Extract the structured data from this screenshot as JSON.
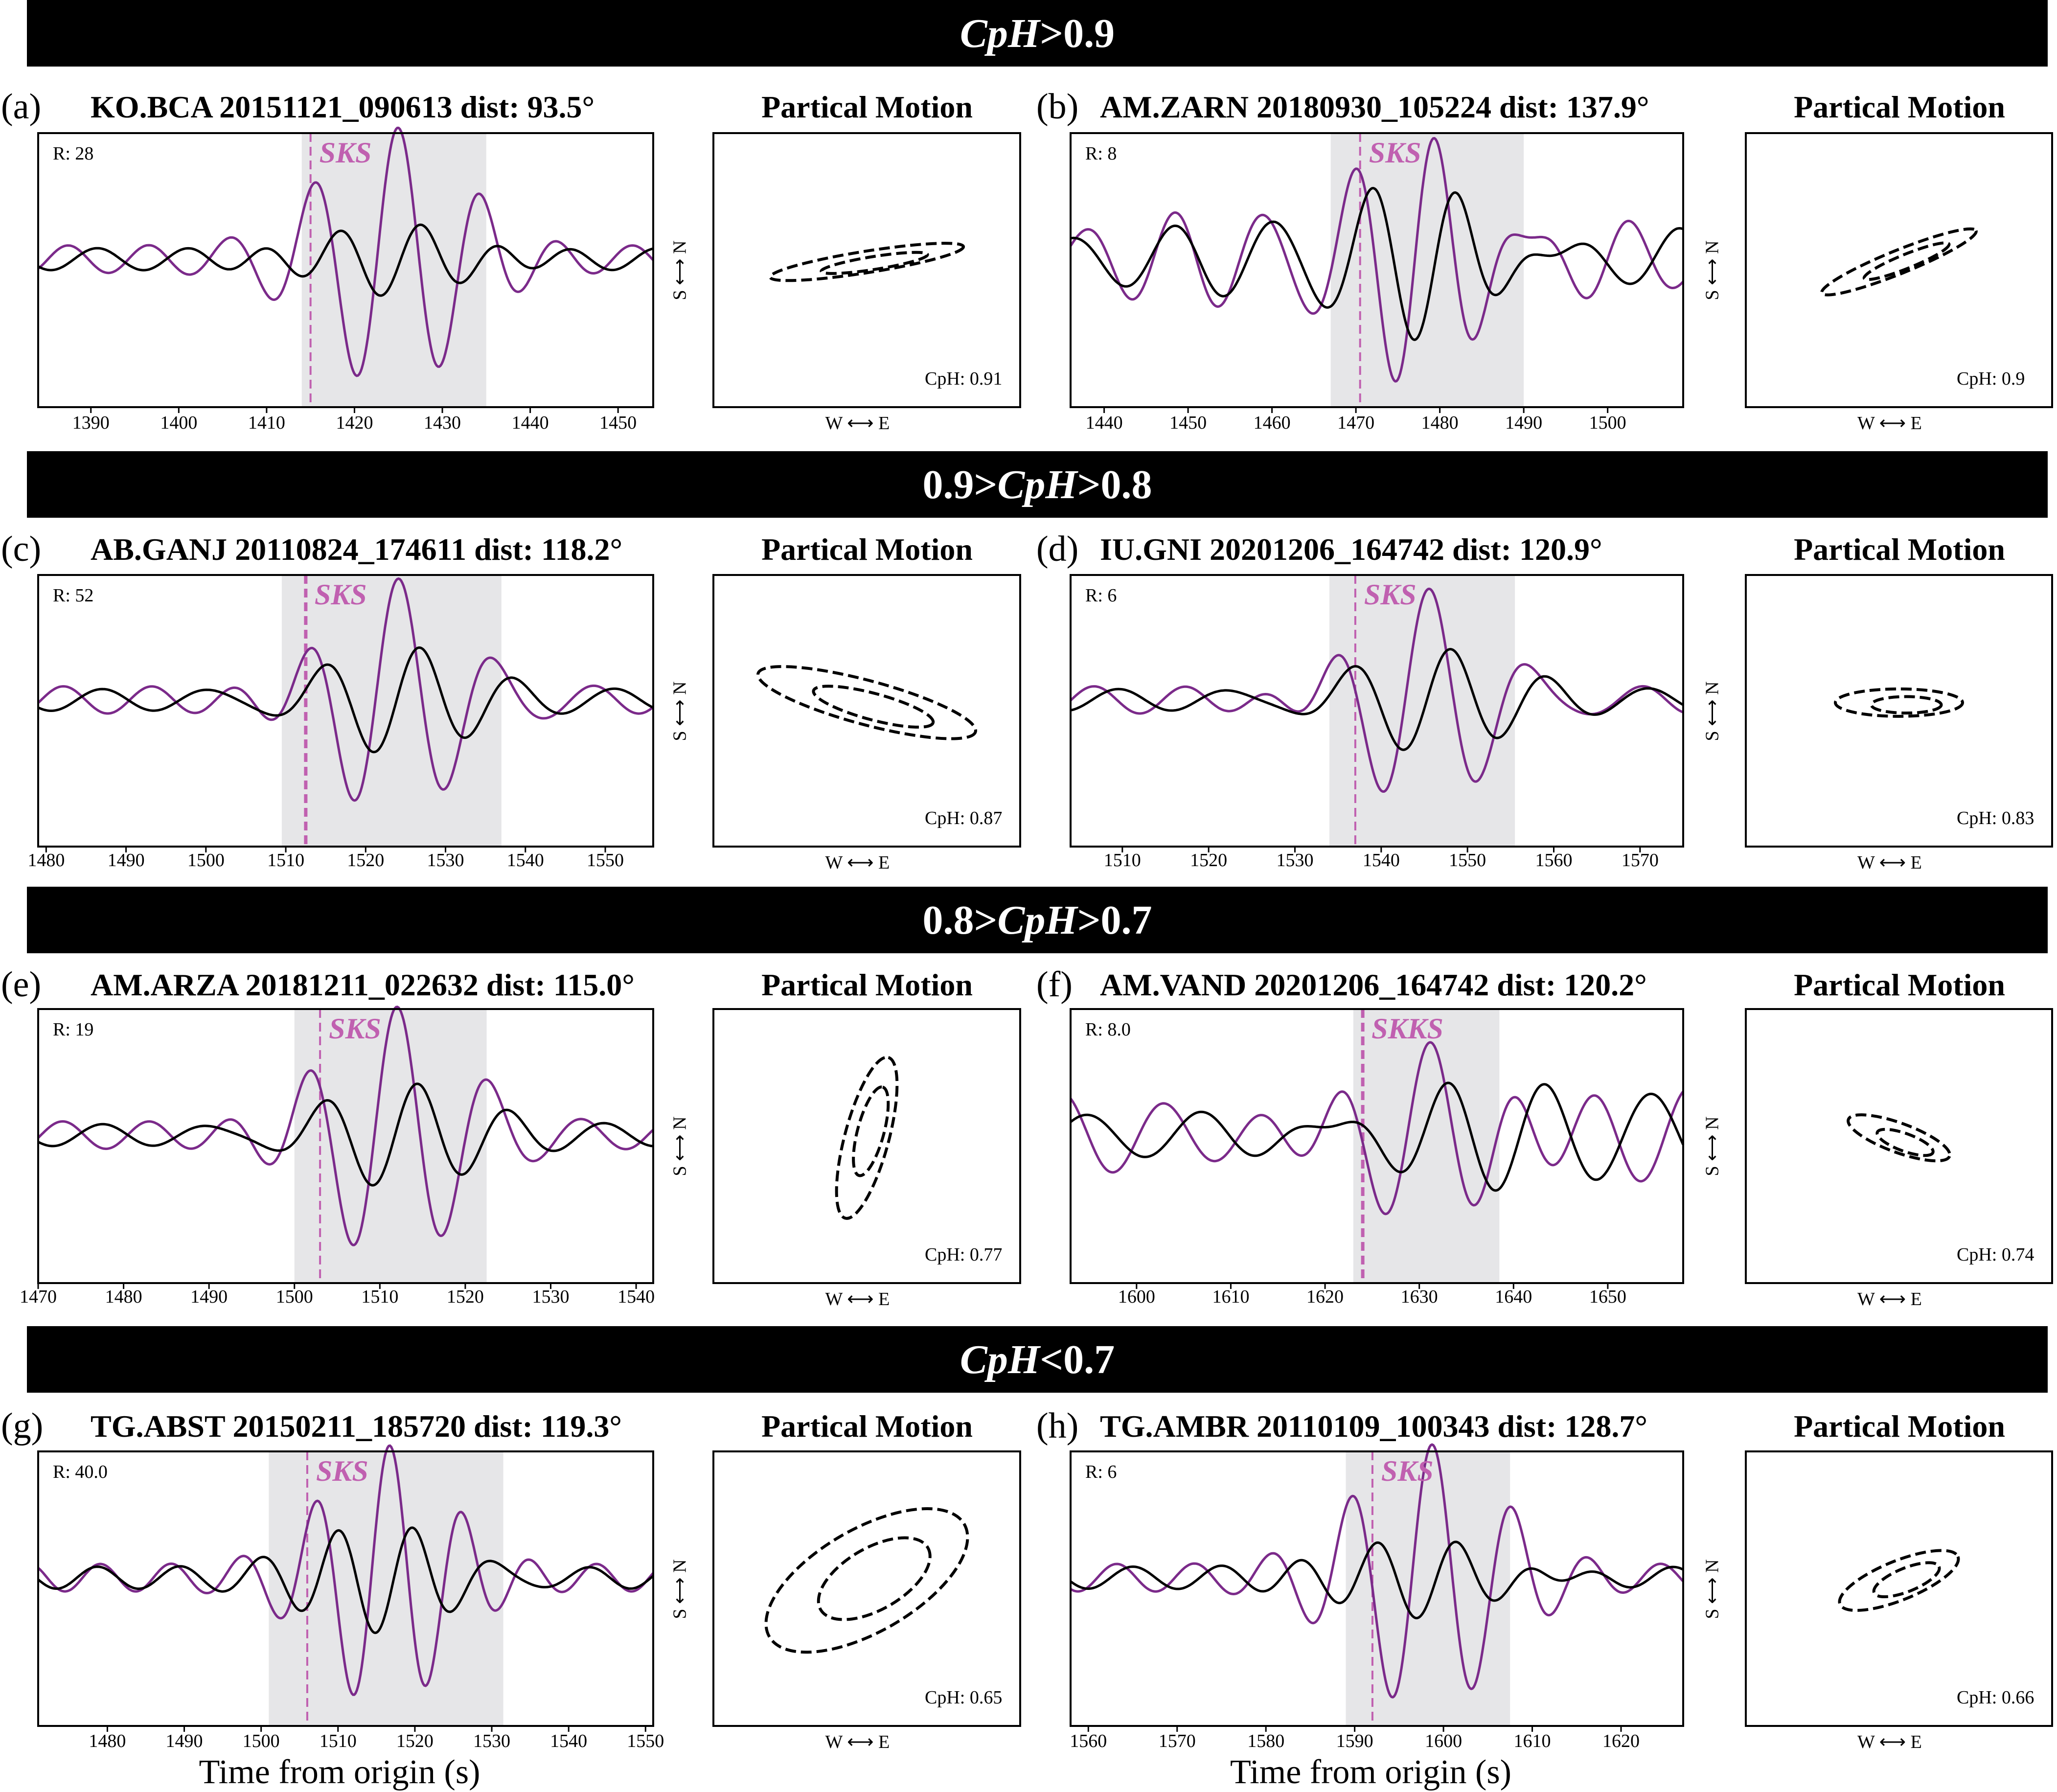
{
  "bands": [
    {
      "parts": [
        {
          "text": "CpH",
          "italic": true
        },
        {
          "text": ">0.9",
          "italic": false
        }
      ]
    },
    {
      "parts": [
        {
          "text": "0.9>",
          "italic": false
        },
        {
          "text": "CpH",
          "italic": true
        },
        {
          "text": ">0.8",
          "italic": false
        }
      ]
    },
    {
      "parts": [
        {
          "text": "0.8>",
          "italic": false
        },
        {
          "text": "CpH",
          "italic": true
        },
        {
          "text": ">0.7",
          "italic": false
        }
      ]
    },
    {
      "parts": [
        {
          "text": "CpH",
          "italic": true
        },
        {
          "text": "<0.7",
          "italic": false
        }
      ]
    }
  ],
  "pm_title": "Partical Motion",
  "pm_xlabel": "W ⟷ E",
  "pm_ylabel": "S ⟷ N",
  "xlabel": "Time from origin (s)",
  "colors": {
    "radial": "#000000",
    "transverse": "#7b2a8a",
    "phase": "#c060b0",
    "window": "#e6e6e8"
  },
  "chart_data": [
    {
      "type": "line",
      "letter": "(a)",
      "title": "KO.BCA 20151121_090613 dist: 93.5°",
      "r_label": "R: 28",
      "phase": "SKS",
      "phase_time": 1415,
      "window": [
        1414,
        1435
      ],
      "xlim": [
        1384,
        1454
      ],
      "xticks": [
        1390,
        1400,
        1410,
        1420,
        1430,
        1440,
        1450
      ],
      "cph_label": "CpH: 0.91",
      "xlabel": ""
    },
    {
      "type": "line",
      "letter": "(b)",
      "title": "AM.ZARN 20180930_105224 dist: 137.9°",
      "r_label": "R: 8",
      "phase": "SKS",
      "phase_time": 1470.5,
      "window": [
        1467,
        1490
      ],
      "xlim": [
        1436,
        1509
      ],
      "xticks": [
        1440,
        1450,
        1460,
        1470,
        1480,
        1490,
        1500
      ],
      "cph_label": "CpH: 0.9",
      "xlabel": ""
    },
    {
      "type": "line",
      "letter": "(c)",
      "title": "AB.GANJ 20110824_174611 dist: 118.2°",
      "r_label": "R: 52",
      "phase": "SKS",
      "phase_time": 1512.5,
      "window": [
        1509.5,
        1537
      ],
      "xlim": [
        1479,
        1556
      ],
      "xticks": [
        1480,
        1490,
        1500,
        1510,
        1520,
        1530,
        1540,
        1550
      ],
      "cph_label": "CpH: 0.87",
      "xlabel": ""
    },
    {
      "type": "line",
      "letter": "(d)",
      "title": "IU.GNI 20201206_164742 dist: 120.9°",
      "r_label": "R: 6",
      "phase": "SKS",
      "phase_time": 1537,
      "window": [
        1534,
        1555.5
      ],
      "xlim": [
        1504,
        1575
      ],
      "xticks": [
        1510,
        1520,
        1530,
        1540,
        1550,
        1560,
        1570
      ],
      "cph_label": "CpH: 0.83",
      "xlabel": ""
    },
    {
      "type": "line",
      "letter": "(e)",
      "title": "AM.ARZA 20181211_022632 dist: 115.0°",
      "r_label": "R: 19",
      "phase": "SKS",
      "phase_time": 1503,
      "window": [
        1500,
        1522.5
      ],
      "xlim": [
        1470,
        1542
      ],
      "xticks": [
        1470,
        1480,
        1490,
        1500,
        1510,
        1520,
        1530,
        1540
      ],
      "cph_label": "CpH: 0.77",
      "xlabel": ""
    },
    {
      "type": "line",
      "letter": "(f)",
      "title": "AM.VAND 20201206_164742 dist: 120.2°",
      "r_label": "R: 8.0",
      "phase": "SKKS",
      "phase_time": 1624,
      "window": [
        1623,
        1638.5
      ],
      "xlim": [
        1593,
        1658
      ],
      "xticks": [
        1600,
        1610,
        1620,
        1630,
        1640,
        1650
      ],
      "cph_label": "CpH: 0.74",
      "xlabel": ""
    },
    {
      "type": "line",
      "letter": "(g)",
      "title": "TG.ABST 20150211_185720 dist: 119.3°",
      "r_label": "R: 40.0",
      "phase": "SKS",
      "phase_time": 1506,
      "window": [
        1501,
        1531.5
      ],
      "xlim": [
        1471,
        1551
      ],
      "xticks": [
        1480,
        1490,
        1500,
        1510,
        1520,
        1530,
        1540,
        1550
      ],
      "cph_label": "CpH: 0.65",
      "xlabel": "Time from origin (s)"
    },
    {
      "type": "line",
      "letter": "(h)",
      "title": "TG.AMBR 20110109_100343 dist: 128.7°",
      "r_label": "R: 6",
      "phase": "SKS",
      "phase_time": 1592,
      "window": [
        1589,
        1607.5
      ],
      "xlim": [
        1558,
        1627
      ],
      "xticks": [
        1560,
        1570,
        1580,
        1590,
        1600,
        1610,
        1620
      ],
      "cph_label": "CpH: 0.66",
      "xlabel": "Time from origin (s)"
    }
  ]
}
